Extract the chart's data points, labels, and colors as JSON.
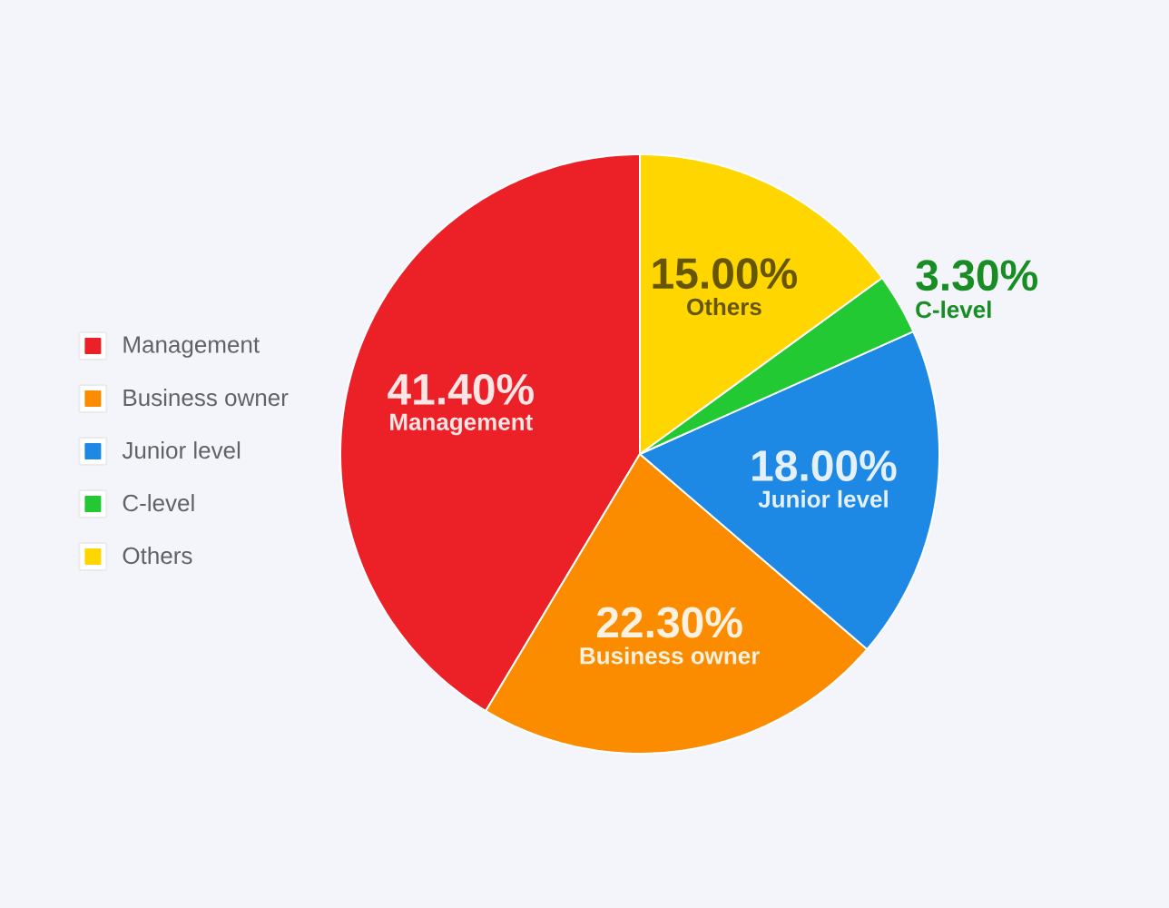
{
  "chart_data": {
    "type": "pie",
    "categories": [
      "Management",
      "Business owner",
      "Junior level",
      "C-level",
      "Others"
    ],
    "values": [
      41.4,
      22.3,
      18.0,
      3.3,
      15.0
    ],
    "colors": [
      "#ec2027",
      "#fb8c00",
      "#1e88e5",
      "#22c932",
      "#ffd600"
    ],
    "value_labels": [
      "41.40%",
      "22.30%",
      "18.00%",
      "3.30%",
      "15.00%"
    ],
    "legend": "left"
  }
}
